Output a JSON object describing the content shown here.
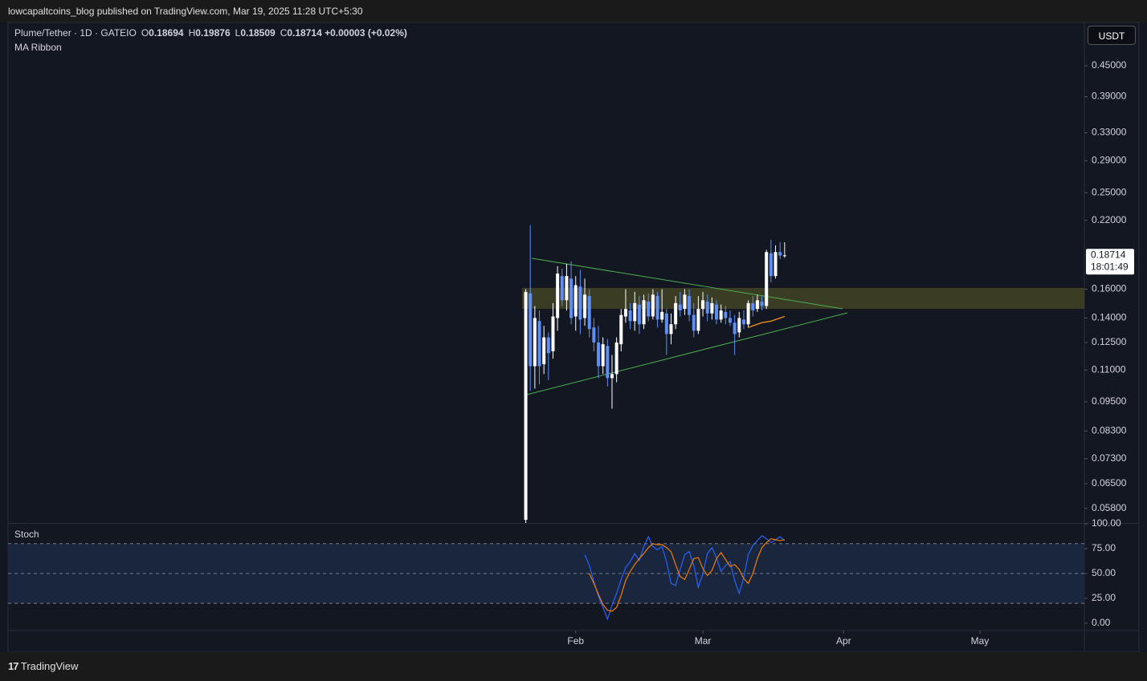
{
  "header": {
    "publisher": "lowcapaltcoins_blog published on TradingView.com, Mar 19, 2025 11:28 UTC+5:30",
    "symbol": "Plume/Tether · 1D · GATEIO",
    "ohlc": [
      {
        "key": "O",
        "value": "0.18694"
      },
      {
        "key": "H",
        "value": "0.19876"
      },
      {
        "key": "L",
        "value": "0.18509"
      },
      {
        "key": "C",
        "value": "0.18714"
      }
    ],
    "change": "+0.00003 (+0.02%)",
    "currency": "USDT"
  },
  "footer": {
    "logo": "TradingView"
  },
  "chart_data": [
    {
      "type": "candlestick",
      "up_color": "#ffffff",
      "down_color": "#5d8ef5",
      "log_scale": true,
      "x": [
        21,
        22,
        23,
        24,
        25,
        26,
        27,
        28,
        29,
        30,
        31,
        32,
        33,
        34,
        35,
        36,
        37,
        38,
        39,
        40,
        41,
        42,
        43,
        44,
        45,
        46,
        47,
        48,
        49,
        50,
        51,
        52,
        53,
        54,
        55,
        56,
        57,
        58,
        59,
        60,
        61,
        62,
        63,
        64,
        65,
        66,
        67,
        68,
        69,
        70,
        71,
        72,
        73,
        74,
        75,
        76,
        77,
        78
      ],
      "open": [
        0.055,
        0.157,
        0.112,
        0.138,
        0.113,
        0.128,
        0.12,
        0.14,
        0.17,
        0.152,
        0.168,
        0.141,
        0.162,
        0.14,
        0.155,
        0.134,
        0.125,
        0.112,
        0.123,
        0.106,
        0.108,
        0.124,
        0.141,
        0.145,
        0.138,
        0.149,
        0.136,
        0.151,
        0.141,
        0.155,
        0.139,
        0.143,
        0.13,
        0.136,
        0.149,
        0.146,
        0.155,
        0.142,
        0.132,
        0.146,
        0.151,
        0.143,
        0.149,
        0.139,
        0.144,
        0.14,
        0.137,
        0.131,
        0.139,
        0.136,
        0.15,
        0.146,
        0.151,
        0.148,
        0.189,
        0.17,
        0.19,
        0.18694
      ],
      "high": [
        0.16,
        0.215,
        0.148,
        0.145,
        0.135,
        0.131,
        0.15,
        0.178,
        0.176,
        0.18,
        0.182,
        0.17,
        0.175,
        0.168,
        0.16,
        0.14,
        0.135,
        0.128,
        0.127,
        0.118,
        0.128,
        0.146,
        0.16,
        0.15,
        0.158,
        0.155,
        0.156,
        0.157,
        0.16,
        0.158,
        0.16,
        0.146,
        0.143,
        0.155,
        0.158,
        0.16,
        0.16,
        0.15,
        0.155,
        0.158,
        0.156,
        0.154,
        0.152,
        0.149,
        0.148,
        0.145,
        0.142,
        0.144,
        0.145,
        0.152,
        0.155,
        0.156,
        0.155,
        0.192,
        0.201,
        0.196,
        0.199,
        0.19876
      ],
      "low": [
        0.0542,
        0.1,
        0.101,
        0.103,
        0.108,
        0.105,
        0.116,
        0.132,
        0.148,
        0.145,
        0.136,
        0.132,
        0.13,
        0.135,
        0.128,
        0.12,
        0.106,
        0.108,
        0.102,
        0.092,
        0.104,
        0.12,
        0.137,
        0.133,
        0.132,
        0.13,
        0.133,
        0.138,
        0.139,
        0.134,
        0.137,
        0.118,
        0.124,
        0.133,
        0.141,
        0.142,
        0.138,
        0.128,
        0.13,
        0.141,
        0.138,
        0.139,
        0.136,
        0.137,
        0.136,
        0.135,
        0.118,
        0.128,
        0.133,
        0.134,
        0.141,
        0.144,
        0.145,
        0.146,
        0.165,
        0.168,
        0.184,
        0.18509
      ],
      "close": [
        0.158,
        0.112,
        0.14,
        0.112,
        0.128,
        0.119,
        0.141,
        0.172,
        0.152,
        0.17,
        0.14,
        0.163,
        0.139,
        0.156,
        0.133,
        0.125,
        0.112,
        0.124,
        0.106,
        0.108,
        0.125,
        0.142,
        0.146,
        0.138,
        0.15,
        0.136,
        0.152,
        0.141,
        0.156,
        0.139,
        0.144,
        0.13,
        0.136,
        0.15,
        0.145,
        0.156,
        0.142,
        0.132,
        0.146,
        0.152,
        0.143,
        0.15,
        0.139,
        0.145,
        0.14,
        0.137,
        0.13,
        0.14,
        0.136,
        0.15,
        0.145,
        0.152,
        0.148,
        0.19,
        0.17,
        0.19,
        0.187,
        0.18714
      ],
      "last_label": "0.18714",
      "countdown": "18:01:49",
      "ma": {
        "name": "MA Ribbon",
        "color": "#f7931a",
        "x": [
          70,
          71,
          72,
          73,
          74,
          75,
          76,
          77,
          78
        ],
        "values": [
          0.134,
          0.135,
          0.136,
          0.137,
          0.1375,
          0.138,
          0.139,
          0.14,
          0.141
        ]
      },
      "xlim": [
        -93,
        144
      ],
      "xticks": [
        {
          "value": 32,
          "label": "Feb"
        },
        {
          "value": 60,
          "label": "Mar"
        },
        {
          "value": 91,
          "label": "Apr"
        },
        {
          "value": 121,
          "label": "May"
        }
      ],
      "ylim": [
        0.0542,
        0.55
      ],
      "yticks": [
        {
          "value": 0.45,
          "label": "0.45000"
        },
        {
          "value": 0.39,
          "label": "0.39000"
        },
        {
          "value": 0.33,
          "label": "0.33000"
        },
        {
          "value": 0.29,
          "label": "0.29000"
        },
        {
          "value": 0.25,
          "label": "0.25000"
        },
        {
          "value": 0.22,
          "label": "0.22000"
        },
        {
          "value": 0.16,
          "label": "0.16000"
        },
        {
          "value": 0.14,
          "label": "0.14000"
        },
        {
          "value": 0.125,
          "label": "0.12500"
        },
        {
          "value": 0.11,
          "label": "0.11000"
        },
        {
          "value": 0.095,
          "label": "0.09500"
        },
        {
          "value": 0.083,
          "label": "0.08300"
        },
        {
          "value": 0.073,
          "label": "0.07300"
        },
        {
          "value": 0.065,
          "label": "0.06500"
        },
        {
          "value": 0.058,
          "label": "0.05800"
        }
      ]
    },
    {
      "type": "line",
      "title": "Stoch",
      "x": [
        34,
        35,
        36,
        37,
        38,
        39,
        40,
        41,
        42,
        43,
        44,
        45,
        46,
        47,
        48,
        49,
        50,
        51,
        52,
        53,
        54,
        55,
        56,
        57,
        58,
        59,
        60,
        61,
        62,
        63,
        64,
        65,
        66,
        67,
        68,
        69,
        70,
        71,
        72,
        73,
        74,
        75,
        76,
        77,
        78
      ],
      "series": [
        {
          "name": "%K",
          "color": "#2962ff",
          "values": [
            69,
            58,
            42,
            27,
            16,
            4,
            18,
            30,
            44,
            56,
            62,
            70,
            63,
            77,
            87,
            77,
            74,
            77,
            62,
            40,
            38,
            54,
            69,
            72,
            58,
            36,
            50,
            70,
            76,
            66,
            52,
            58,
            62,
            43,
            30,
            46,
            69,
            78,
            83,
            88,
            85,
            81,
            84,
            87,
            83
          ]
        },
        {
          "name": "%D",
          "color": "#f57c00",
          "values": [
            null,
            50,
            40,
            29,
            19,
            13,
            12,
            16,
            28,
            43,
            52,
            59,
            65,
            70,
            76,
            80,
            79,
            79,
            76,
            72,
            59,
            47,
            44,
            54,
            65,
            66,
            55,
            48,
            53,
            65,
            71,
            64,
            57,
            59,
            54,
            45,
            40,
            50,
            65,
            76,
            81,
            85,
            84,
            83,
            84
          ]
        }
      ],
      "band": [
        20,
        80
      ],
      "midline": 50,
      "ylim": [
        -7.3,
        100
      ],
      "yticks": [
        {
          "value": 100,
          "label": "100.00"
        },
        {
          "value": 75,
          "label": "75.00"
        },
        {
          "value": 50,
          "label": "50.00"
        },
        {
          "value": 25,
          "label": "25.00"
        },
        {
          "value": 0,
          "label": "0.00"
        }
      ]
    }
  ]
}
